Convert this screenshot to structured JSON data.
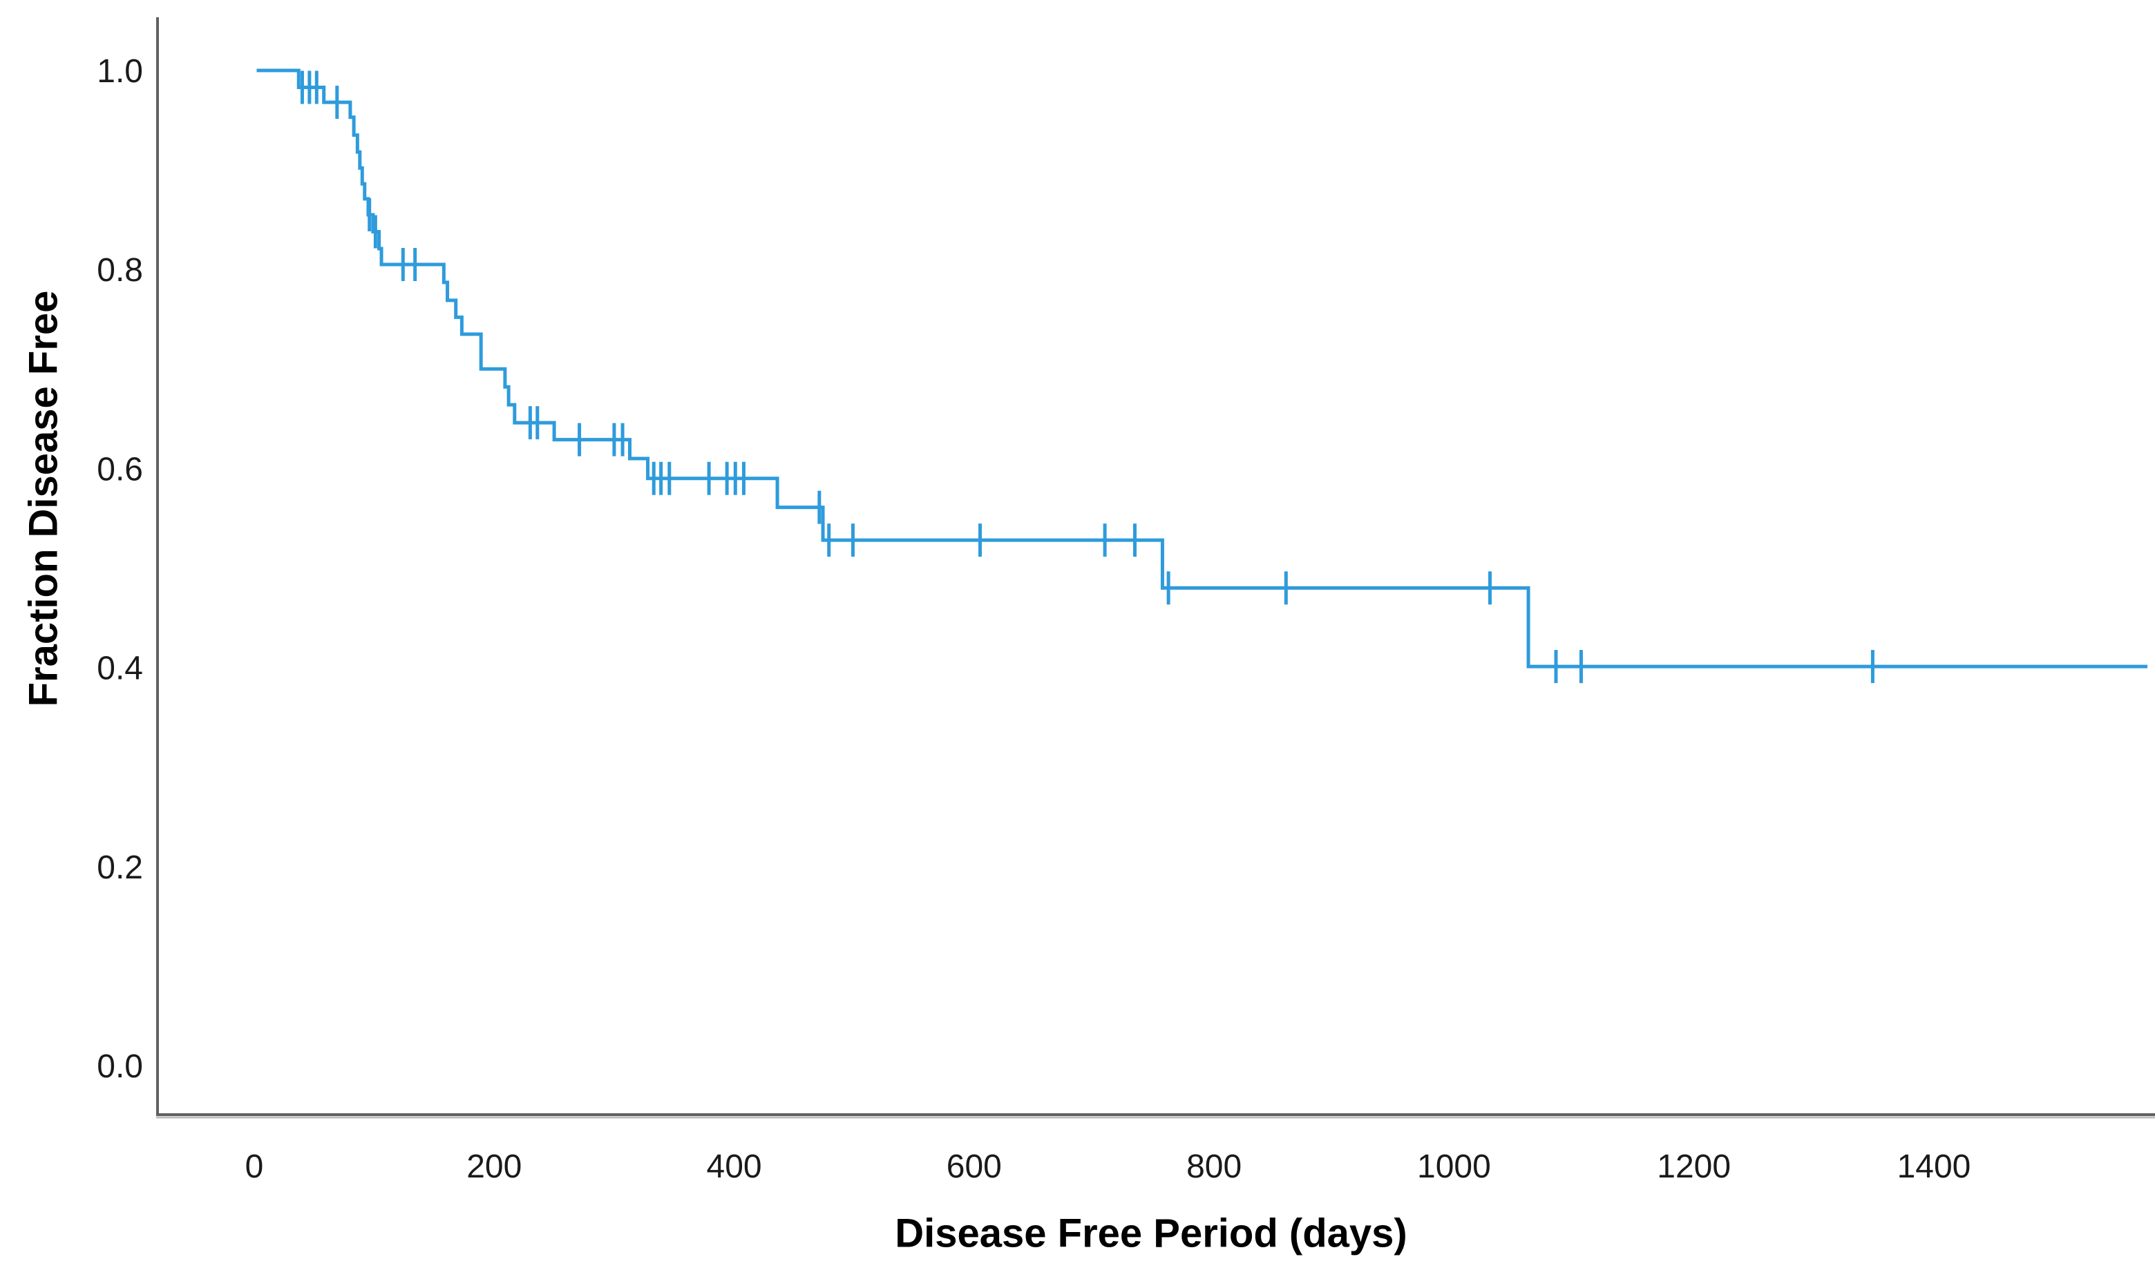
{
  "figure": {
    "background": "#ffffff",
    "axis_line_color": "#606060",
    "axis_shadow_color": "#bdbdbd",
    "tick_text_color": "#1a1a1a"
  },
  "chart_data": {
    "type": "line",
    "subtype": "kaplan-meier-step-function",
    "title": "",
    "xlabel": "Disease Free Period (days)",
    "ylabel": "Fraction Disease Free",
    "x_ticks": [
      0,
      200,
      400,
      600,
      800,
      1000,
      1200,
      1400
    ],
    "y_ticks": [
      1.0,
      0.8,
      0.6,
      0.4,
      0.2,
      0.0
    ],
    "xlim": [
      -82,
      1584
    ],
    "ylim": [
      -0.05,
      1.07
    ],
    "grid": false,
    "legend_position": "none",
    "series": [
      {
        "name": "Fraction disease free",
        "color": "#2E9BDC",
        "start": {
          "t": 2,
          "s": 1.0
        },
        "end_t": 1578,
        "steps": [
          [
            37,
            0.983
          ],
          [
            58,
            0.968
          ],
          [
            80,
            0.953
          ],
          [
            83,
            0.935
          ],
          [
            86,
            0.918
          ],
          [
            88,
            0.902
          ],
          [
            90,
            0.886
          ],
          [
            92,
            0.871
          ],
          [
            95,
            0.855
          ],
          [
            99,
            0.838
          ],
          [
            104,
            0.821
          ],
          [
            106,
            0.805
          ],
          [
            158,
            0.787
          ],
          [
            161,
            0.769
          ],
          [
            168,
            0.752
          ],
          [
            173,
            0.735
          ],
          [
            189,
            0.7
          ],
          [
            209,
            0.682
          ],
          [
            212,
            0.664
          ],
          [
            217,
            0.646
          ],
          [
            250,
            0.629
          ],
          [
            313,
            0.61
          ],
          [
            328,
            0.59
          ],
          [
            436,
            0.561
          ],
          [
            474,
            0.528
          ],
          [
            757,
            0.48
          ],
          [
            1062,
            0.401
          ]
        ],
        "censors": [
          [
            40,
            0.983
          ],
          [
            46,
            0.983
          ],
          [
            52,
            0.983
          ],
          [
            69,
            0.968
          ],
          [
            96,
            0.855
          ],
          [
            101,
            0.838
          ],
          [
            124,
            0.805
          ],
          [
            134,
            0.805
          ],
          [
            230,
            0.646
          ],
          [
            236,
            0.646
          ],
          [
            271,
            0.629
          ],
          [
            300,
            0.629
          ],
          [
            307,
            0.629
          ],
          [
            333,
            0.59
          ],
          [
            339,
            0.59
          ],
          [
            346,
            0.59
          ],
          [
            379,
            0.59
          ],
          [
            394,
            0.59
          ],
          [
            401,
            0.59
          ],
          [
            408,
            0.59
          ],
          [
            471,
            0.561
          ],
          [
            479,
            0.528
          ],
          [
            499,
            0.528
          ],
          [
            605,
            0.528
          ],
          [
            709,
            0.528
          ],
          [
            734,
            0.528
          ],
          [
            762,
            0.48
          ],
          [
            860,
            0.48
          ],
          [
            1030,
            0.48
          ],
          [
            1085,
            0.401
          ],
          [
            1106,
            0.401
          ],
          [
            1349,
            0.401
          ]
        ]
      }
    ]
  }
}
